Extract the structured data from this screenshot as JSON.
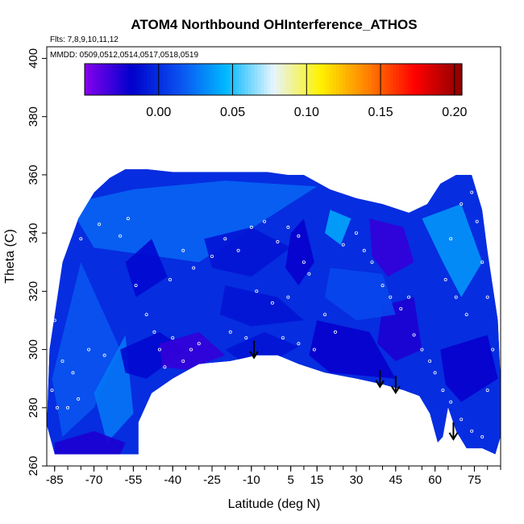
{
  "chart_data": {
    "type": "heatmap",
    "title": "ATOM4 Northbound OHInterference_ATHOS",
    "annotations": {
      "flights": "Flts: 7,8,9,10,11,12",
      "dates": "MMDD: 0509,0512,0514,0517,0518,0519"
    },
    "xlabel": "Latitude (deg N)",
    "ylabel": "Theta (C)",
    "xlim": [
      -88,
      85
    ],
    "ylim": [
      260,
      404
    ],
    "x_ticks": [
      -85,
      -70,
      -55,
      -40,
      -25,
      -10,
      5,
      15,
      30,
      45,
      60,
      75
    ],
    "y_ticks": [
      260,
      280,
      300,
      320,
      340,
      360,
      380,
      400
    ],
    "colorbar": {
      "range": [
        -0.05,
        0.205
      ],
      "ticks": [
        "0.00",
        "0.05",
        "0.10",
        "0.15",
        "0.20"
      ],
      "tick_values": [
        0.0,
        0.05,
        0.1,
        0.15,
        0.2
      ],
      "divisions": [
        -0.05,
        -0.0,
        0.05,
        0.1,
        0.15,
        0.2
      ],
      "colors": [
        "#8800ee",
        "#0000cc",
        "#0a50f0",
        "#00b8ff",
        "#e6f4ff",
        "#fff200",
        "#ff8000",
        "#ff0000",
        "#8b0000"
      ]
    },
    "arrows": [
      {
        "lat": -9,
        "theta": 303
      },
      {
        "lat": 39,
        "theta": 293
      },
      {
        "lat": 45,
        "theta": 291
      },
      {
        "lat": 67,
        "theta": 275
      }
    ],
    "lower_boundary": [
      [
        -85,
        264
      ],
      [
        -80,
        264
      ],
      [
        -53,
        264
      ],
      [
        -53,
        275
      ],
      [
        -48,
        285
      ],
      [
        -40,
        290
      ],
      [
        -30,
        295
      ],
      [
        -18,
        296
      ],
      [
        -8,
        298
      ],
      [
        0,
        298
      ],
      [
        8,
        295
      ],
      [
        18,
        292
      ],
      [
        30,
        290
      ],
      [
        40,
        288
      ],
      [
        48,
        286
      ],
      [
        54,
        284
      ],
      [
        58,
        278
      ],
      [
        61,
        268
      ],
      [
        63,
        270
      ],
      [
        65,
        280
      ],
      [
        68,
        272
      ],
      [
        72,
        266
      ],
      [
        78,
        266
      ],
      [
        83,
        264
      ]
    ],
    "upper_boundary": [
      [
        -88,
        274
      ],
      [
        -87,
        300
      ],
      [
        -82,
        330
      ],
      [
        -76,
        345
      ],
      [
        -70,
        354
      ],
      [
        -64,
        359
      ],
      [
        -58,
        362
      ],
      [
        -50,
        362
      ],
      [
        -40,
        361
      ],
      [
        -28,
        361
      ],
      [
        -16,
        361
      ],
      [
        -4,
        361
      ],
      [
        4,
        360
      ],
      [
        10,
        360
      ],
      [
        20,
        355
      ],
      [
        30,
        352
      ],
      [
        40,
        350
      ],
      [
        50,
        347
      ],
      [
        57,
        350
      ],
      [
        62,
        357
      ],
      [
        68,
        360
      ],
      [
        74,
        360
      ],
      [
        78,
        348
      ],
      [
        80,
        334
      ],
      [
        82,
        322
      ],
      [
        84,
        310
      ],
      [
        85,
        290
      ],
      [
        85,
        270
      ]
    ],
    "regions": [
      {
        "value": 0.02,
        "points": [
          [
            -80,
            350
          ],
          [
            -55,
            355
          ],
          [
            -20,
            358
          ],
          [
            15,
            356
          ],
          [
            -30,
            330
          ],
          [
            -70,
            335
          ]
        ]
      },
      {
        "value": 0.015,
        "points": [
          [
            -86,
            290
          ],
          [
            -75,
            330
          ],
          [
            -60,
            300
          ],
          [
            -70,
            280
          ],
          [
            -82,
            270
          ]
        ]
      },
      {
        "value": 0.025,
        "points": [
          [
            -70,
            285
          ],
          [
            -58,
            305
          ],
          [
            -55,
            278
          ],
          [
            -65,
            268
          ]
        ]
      },
      {
        "value": -0.015,
        "points": [
          [
            -60,
            300
          ],
          [
            -45,
            306
          ],
          [
            -35,
            300
          ],
          [
            -50,
            290
          ],
          [
            -58,
            292
          ]
        ]
      },
      {
        "value": -0.03,
        "points": [
          [
            -45,
            302
          ],
          [
            -30,
            306
          ],
          [
            -20,
            298
          ],
          [
            -35,
            293
          ],
          [
            -44,
            294
          ]
        ]
      },
      {
        "value": -0.01,
        "points": [
          [
            -20,
            300
          ],
          [
            -5,
            306
          ],
          [
            8,
            301
          ],
          [
            -2,
            296
          ],
          [
            -14,
            296
          ]
        ]
      },
      {
        "value": -0.02,
        "points": [
          [
            15,
            310
          ],
          [
            35,
            306
          ],
          [
            45,
            290
          ],
          [
            20,
            292
          ],
          [
            12,
            298
          ]
        ]
      },
      {
        "value": -0.025,
        "points": [
          [
            40,
            315
          ],
          [
            52,
            318
          ],
          [
            55,
            300
          ],
          [
            45,
            296
          ],
          [
            38,
            302
          ]
        ]
      },
      {
        "value": -0.02,
        "points": [
          [
            62,
            300
          ],
          [
            80,
            305
          ],
          [
            84,
            290
          ],
          [
            70,
            282
          ],
          [
            64,
            288
          ]
        ]
      },
      {
        "value": 0.035,
        "points": [
          [
            55,
            345
          ],
          [
            63,
            330
          ],
          [
            70,
            318
          ],
          [
            78,
            330
          ],
          [
            70,
            350
          ]
        ]
      },
      {
        "value": -0.01,
        "points": [
          [
            -28,
            338
          ],
          [
            -10,
            342
          ],
          [
            5,
            335
          ],
          [
            -10,
            325
          ],
          [
            -25,
            328
          ]
        ]
      },
      {
        "value": -0.02,
        "points": [
          [
            5,
            340
          ],
          [
            10,
            345
          ],
          [
            14,
            330
          ],
          [
            8,
            322
          ],
          [
            3,
            328
          ]
        ]
      },
      {
        "value": 0.04,
        "points": [
          [
            20,
            348
          ],
          [
            28,
            345
          ],
          [
            24,
            336
          ],
          [
            18,
            340
          ]
        ]
      },
      {
        "value": -0.03,
        "points": [
          [
            35,
            345
          ],
          [
            48,
            342
          ],
          [
            52,
            330
          ],
          [
            42,
            325
          ],
          [
            36,
            332
          ]
        ]
      },
      {
        "value": -0.015,
        "points": [
          [
            -58,
            330
          ],
          [
            -48,
            338
          ],
          [
            -42,
            325
          ],
          [
            -54,
            318
          ]
        ]
      },
      {
        "value": -0.01,
        "points": [
          [
            -20,
            322
          ],
          [
            0,
            318
          ],
          [
            10,
            310
          ],
          [
            -10,
            308
          ],
          [
            -22,
            312
          ]
        ]
      },
      {
        "value": 0.01,
        "points": [
          [
            20,
            328
          ],
          [
            40,
            326
          ],
          [
            45,
            312
          ],
          [
            30,
            310
          ],
          [
            18,
            318
          ]
        ]
      },
      {
        "value": -0.025,
        "points": [
          [
            -85,
            268
          ],
          [
            -70,
            272
          ],
          [
            -58,
            268
          ],
          [
            -60,
            264
          ],
          [
            -85,
            264
          ]
        ]
      }
    ],
    "points": [
      [
        -80,
        280
      ],
      [
        -78,
        292
      ],
      [
        -72,
        300
      ],
      [
        -82,
        296
      ],
      [
        -85,
        310
      ],
      [
        -75,
        338
      ],
      [
        -68,
        343
      ],
      [
        -60,
        339
      ],
      [
        -57,
        345
      ],
      [
        -50,
        312
      ],
      [
        -47,
        306
      ],
      [
        -45,
        300
      ],
      [
        -43,
        294
      ],
      [
        -40,
        304
      ],
      [
        -36,
        296
      ],
      [
        -33,
        300
      ],
      [
        -30,
        302
      ],
      [
        -41,
        324
      ],
      [
        -36,
        334
      ],
      [
        -32,
        328
      ],
      [
        -25,
        332
      ],
      [
        -20,
        338
      ],
      [
        -15,
        334
      ],
      [
        -10,
        342
      ],
      [
        -5,
        344
      ],
      [
        0,
        337
      ],
      [
        4,
        342
      ],
      [
        8,
        339
      ],
      [
        10,
        330
      ],
      [
        12,
        326
      ],
      [
        -8,
        320
      ],
      [
        -2,
        316
      ],
      [
        4,
        318
      ],
      [
        -18,
        306
      ],
      [
        -12,
        304
      ],
      [
        2,
        304
      ],
      [
        8,
        302
      ],
      [
        14,
        300
      ],
      [
        18,
        312
      ],
      [
        22,
        306
      ],
      [
        25,
        336
      ],
      [
        30,
        340
      ],
      [
        33,
        334
      ],
      [
        36,
        330
      ],
      [
        40,
        322
      ],
      [
        43,
        318
      ],
      [
        47,
        314
      ],
      [
        50,
        318
      ],
      [
        52,
        305
      ],
      [
        55,
        300
      ],
      [
        58,
        296
      ],
      [
        60,
        292
      ],
      [
        63,
        286
      ],
      [
        66,
        282
      ],
      [
        70,
        276
      ],
      [
        74,
        272
      ],
      [
        78,
        270
      ],
      [
        80,
        286
      ],
      [
        82,
        300
      ],
      [
        72,
        312
      ],
      [
        68,
        318
      ],
      [
        64,
        324
      ],
      [
        66,
        338
      ],
      [
        70,
        350
      ],
      [
        74,
        354
      ],
      [
        76,
        344
      ],
      [
        78,
        330
      ],
      [
        80,
        318
      ],
      [
        -86,
        286
      ],
      [
        -84,
        280
      ],
      [
        -76,
        283
      ],
      [
        -66,
        298
      ],
      [
        -54,
        322
      ]
    ]
  }
}
